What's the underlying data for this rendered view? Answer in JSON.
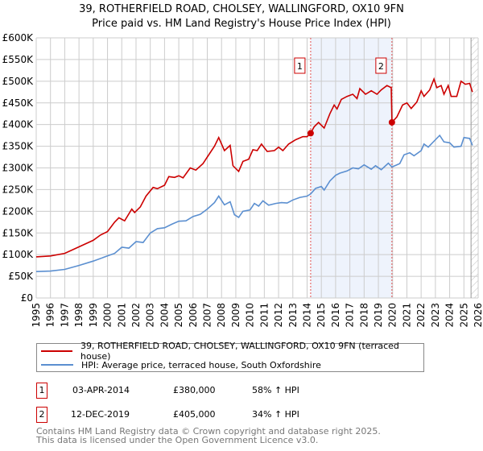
{
  "title": "39, ROTHERFIELD ROAD, CHOLSEY, WALLINGFORD, OX10 9FN",
  "subtitle": "Price paid vs. HM Land Registry's House Price Index (HPI)",
  "chart_data": {
    "type": "line",
    "title": "39, ROTHERFIELD ROAD, CHOLSEY, WALLINGFORD, OX10 9FN — Price paid vs. HM Land Registry's House Price Index (HPI)",
    "xlim": [
      1995,
      2026
    ],
    "ylim": [
      0,
      600000
    ],
    "x_ticks": [
      "1995",
      "1996",
      "1997",
      "1998",
      "1999",
      "2000",
      "2001",
      "2002",
      "2003",
      "2004",
      "2005",
      "2006",
      "2007",
      "2008",
      "2009",
      "2010",
      "2011",
      "2012",
      "2013",
      "2014",
      "2015",
      "2016",
      "2017",
      "2018",
      "2019",
      "2020",
      "2021",
      "2022",
      "2023",
      "2024",
      "2025",
      "2026"
    ],
    "y_ticks": [
      {
        "v": 0,
        "label": "£0"
      },
      {
        "v": 50000,
        "label": "£50K"
      },
      {
        "v": 100000,
        "label": "£100K"
      },
      {
        "v": 150000,
        "label": "£150K"
      },
      {
        "v": 200000,
        "label": "£200K"
      },
      {
        "v": 250000,
        "label": "£250K"
      },
      {
        "v": 300000,
        "label": "£300K"
      },
      {
        "v": 350000,
        "label": "£350K"
      },
      {
        "v": 400000,
        "label": "£400K"
      },
      {
        "v": 450000,
        "label": "£450K"
      },
      {
        "v": 500000,
        "label": "£500K"
      },
      {
        "v": 550000,
        "label": "£550K"
      },
      {
        "v": 600000,
        "label": "£600K"
      }
    ],
    "grid": true,
    "shaded_period": [
      2014.25,
      2019.95
    ],
    "forecast_hatch_from": 2025.5,
    "series": [
      {
        "name": "39, ROTHERFIELD ROAD, CHOLSEY, WALLINGFORD, OX10 9FN (terraced house)",
        "color": "#cc0000",
        "x": [
          1995,
          1996,
          1997,
          1998,
          1999,
          1999.5,
          2000,
          2000.5,
          2000.8,
          2001.2,
          2001.7,
          2001.9,
          2002.3,
          2002.7,
          2003.2,
          2003.5,
          2004,
          2004.3,
          2004.7,
          2005,
          2005.3,
          2005.8,
          2006.2,
          2006.7,
          2007,
          2007.5,
          2007.8,
          2008.2,
          2008.6,
          2008.8,
          2009.2,
          2009.5,
          2009.9,
          2010.2,
          2010.5,
          2010.8,
          2011.2,
          2011.7,
          2012,
          2012.3,
          2012.7,
          2013.2,
          2013.7,
          2014,
          2014.25,
          2014.5,
          2014.8,
          2015.2,
          2015.6,
          2015.9,
          2016.1,
          2016.4,
          2016.8,
          2017.2,
          2017.5,
          2017.7,
          2018.1,
          2018.5,
          2018.9,
          2019.2,
          2019.6,
          2019.9,
          2019.95,
          2020.3,
          2020.7,
          2021,
          2021.3,
          2021.7,
          2022,
          2022.2,
          2022.6,
          2022.9,
          2023.1,
          2023.4,
          2023.6,
          2023.9,
          2024.1,
          2024.5,
          2024.8,
          2025.1,
          2025.4,
          2025.6
        ],
        "y": [
          95000,
          97000,
          103000,
          118000,
          133000,
          145000,
          153000,
          175000,
          185000,
          178000,
          205000,
          197000,
          210000,
          235000,
          255000,
          252000,
          260000,
          280000,
          278000,
          282000,
          277000,
          300000,
          295000,
          310000,
          325000,
          350000,
          370000,
          340000,
          352000,
          305000,
          292000,
          315000,
          320000,
          342000,
          340000,
          355000,
          338000,
          340000,
          348000,
          340000,
          355000,
          365000,
          372000,
          372000,
          380000,
          395000,
          405000,
          392000,
          425000,
          445000,
          436000,
          458000,
          465000,
          470000,
          460000,
          483000,
          470000,
          478000,
          470000,
          480000,
          490000,
          485000,
          405000,
          418000,
          445000,
          450000,
          437000,
          452000,
          478000,
          465000,
          480000,
          505000,
          485000,
          490000,
          470000,
          490000,
          465000,
          465000,
          500000,
          493000,
          495000,
          475000
        ]
      },
      {
        "name": "HPI: Average price, terraced house, South Oxfordshire",
        "color": "#5b8fd0",
        "x": [
          1995,
          1996,
          1997,
          1998,
          1999,
          2000,
          2000.5,
          2001,
          2001.5,
          2002,
          2002.5,
          2003,
          2003.5,
          2004,
          2004.5,
          2005,
          2005.5,
          2006,
          2006.5,
          2007,
          2007.5,
          2007.8,
          2008.2,
          2008.6,
          2008.9,
          2009.2,
          2009.5,
          2010,
          2010.3,
          2010.6,
          2010.9,
          2011.3,
          2011.8,
          2012.2,
          2012.6,
          2013,
          2013.5,
          2014,
          2014.25,
          2014.6,
          2015,
          2015.2,
          2015.6,
          2016,
          2016.3,
          2016.8,
          2017.2,
          2017.6,
          2018,
          2018.5,
          2018.8,
          2019.2,
          2019.7,
          2019.95,
          2020.5,
          2020.8,
          2021.2,
          2021.5,
          2022,
          2022.2,
          2022.5,
          2023,
          2023.3,
          2023.6,
          2024,
          2024.3,
          2024.8,
          2025,
          2025.4,
          2025.6
        ],
        "y": [
          61000,
          62000,
          66000,
          75000,
          85000,
          97000,
          103000,
          117000,
          115000,
          130000,
          128000,
          150000,
          160000,
          162000,
          170000,
          177000,
          178000,
          188000,
          193000,
          205000,
          220000,
          235000,
          215000,
          222000,
          192000,
          186000,
          200000,
          203000,
          218000,
          212000,
          224000,
          214000,
          218000,
          220000,
          219000,
          226000,
          232000,
          235000,
          240000,
          253000,
          257000,
          249000,
          270000,
          283000,
          288000,
          293000,
          300000,
          298000,
          307000,
          297000,
          305000,
          296000,
          311000,
          302000,
          310000,
          330000,
          335000,
          328000,
          340000,
          355000,
          348000,
          365000,
          375000,
          360000,
          358000,
          348000,
          350000,
          370000,
          368000,
          352000
        ]
      }
    ],
    "sales": [
      {
        "label": "1",
        "x": 2014.25,
        "y": 380000
      },
      {
        "label": "2",
        "x": 2019.95,
        "y": 405000
      }
    ],
    "legend_placement": "bottom"
  },
  "legend": {
    "red": "39, ROTHERFIELD ROAD, CHOLSEY, WALLINGFORD, OX10 9FN (terraced house)",
    "blue": "HPI: Average price, terraced house, South Oxfordshire"
  },
  "transactions": [
    {
      "num": "1",
      "date": "03-APR-2014",
      "price": "£380,000",
      "hpi": "58% ↑ HPI"
    },
    {
      "num": "2",
      "date": "12-DEC-2019",
      "price": "£405,000",
      "hpi": "34% ↑ HPI"
    }
  ],
  "footer": {
    "line1": "Contains HM Land Registry data © Crown copyright and database right 2025.",
    "line2": "This data is licensed under the Open Government Licence v3.0."
  }
}
